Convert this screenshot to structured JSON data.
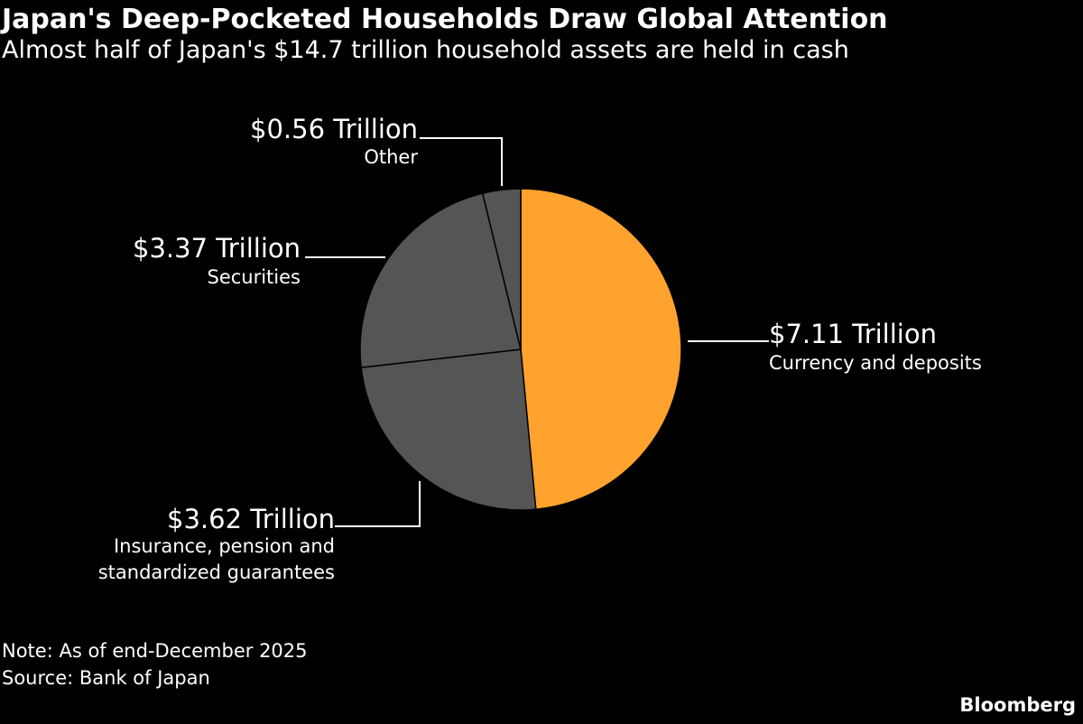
{
  "header": {
    "title": "Japan's Deep-Pocketed Households Draw Global Attention",
    "subtitle": "Almost half of Japan's $14.7 trillion household assets are held in cash"
  },
  "footer": {
    "note": "Note: As of end-December 2025",
    "source": "Source: Bank of Japan",
    "logo": "Bloomberg"
  },
  "chart_data": {
    "type": "pie",
    "unit": "Trillion",
    "slices": [
      {
        "name": "Currency and deposits",
        "value": 7.11,
        "value_label": "$7.11 Trillion",
        "category_lines": [
          "Currency and deposits"
        ],
        "color": "#ffa32e"
      },
      {
        "name": "Insurance, pension and standardized guarantees",
        "value": 3.62,
        "value_label": "$3.62 Trillion",
        "category_lines": [
          "Insurance, pension and",
          "standardized guarantees"
        ],
        "color": "#555555"
      },
      {
        "name": "Securities",
        "value": 3.37,
        "value_label": "$3.37 Trillion",
        "category_lines": [
          "Securities"
        ],
        "color": "#555555"
      },
      {
        "name": "Other",
        "value": 0.56,
        "value_label": "$0.56 Trillion",
        "category_lines": [
          "Other"
        ],
        "color": "#555555"
      }
    ],
    "start_angle": "12 o'clock",
    "direction": "clockwise",
    "slice_border_color": "#000000",
    "leader_line_color": "#ffffff"
  }
}
